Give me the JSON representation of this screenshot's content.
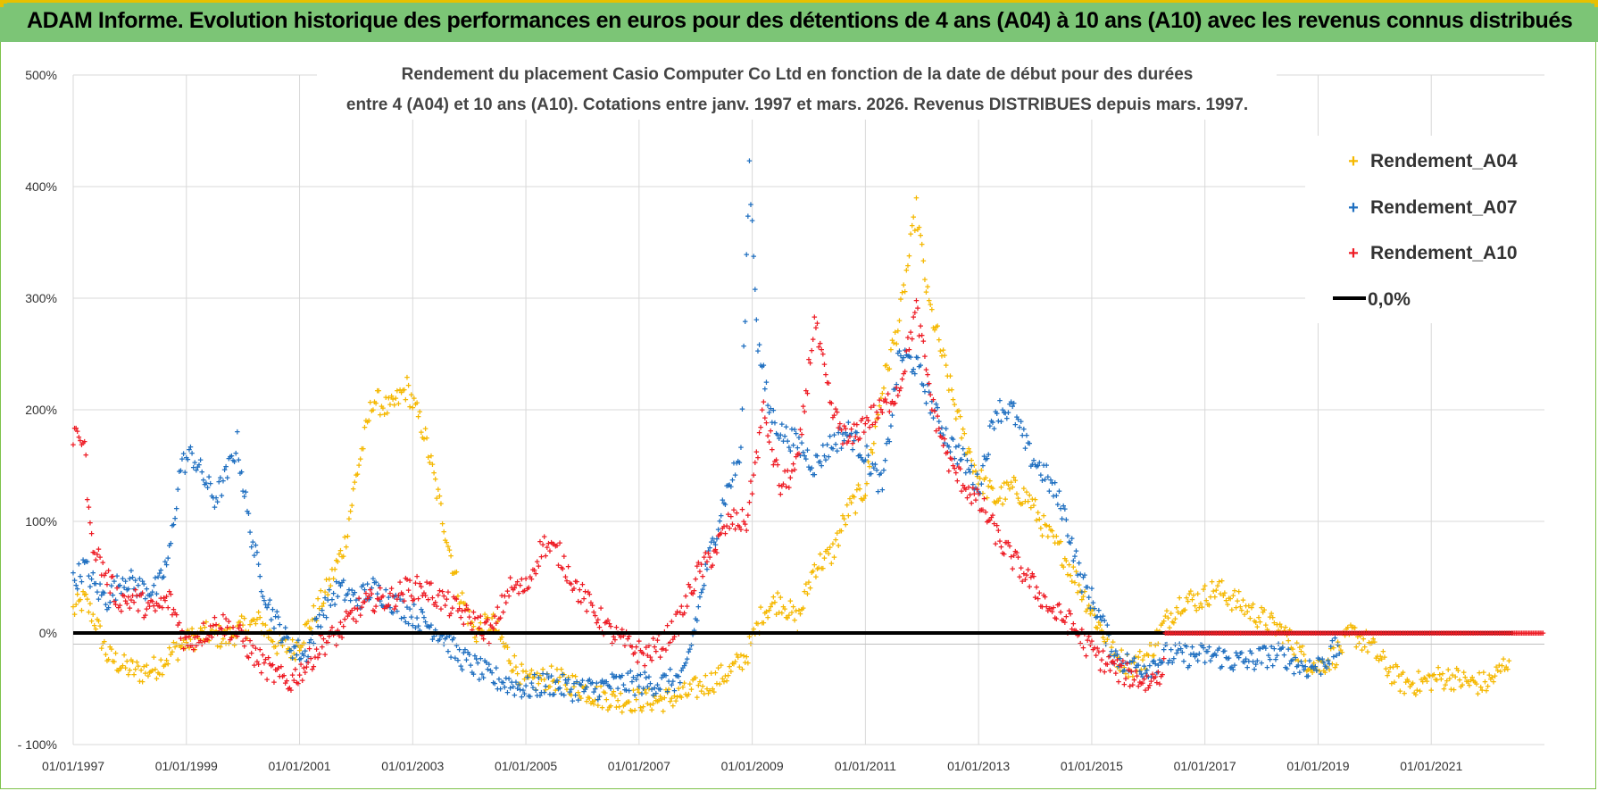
{
  "header": {
    "title": "ADAM Informe. Evolution historique des performances en euros pour des détentions de 4 ans (A04) à 10 ans (A10) avec les revenus connus distribués"
  },
  "colors": {
    "banner": "#7cc576",
    "A04": "#f5b800",
    "A07": "#1f6fc0",
    "A10": "#ee1c25",
    "zero": "#000000"
  },
  "chart_data": {
    "type": "scatter",
    "title_lines": [
      "Rendement du placement Casio Computer Co Ltd en fonction de la date de début pour des durées",
      "entre 4 (A04) et 10 ans (A10).  Cotations entre janv. 1997 et mars. 2026. Revenus DISTRIBUES depuis mars. 1997."
    ],
    "ylim": [
      -100,
      500
    ],
    "y_ticks": [
      "- 100%",
      "0%",
      "100%",
      "200%",
      "300%",
      "400%",
      "500%"
    ],
    "y_tick_values": [
      -100,
      0,
      100,
      200,
      300,
      400,
      500
    ],
    "x_tick_labels": [
      "01/01/1997",
      "01/01/1999",
      "01/01/2001",
      "01/01/2003",
      "01/01/2005",
      "01/01/2007",
      "01/01/2009",
      "01/01/2011",
      "01/01/2013",
      "01/01/2015",
      "01/01/2017",
      "01/01/2019",
      "01/01/2021"
    ],
    "x_tick_years": [
      1997,
      1999,
      2001,
      2003,
      2005,
      2007,
      2009,
      2011,
      2013,
      2015,
      2017,
      2019,
      2021
    ],
    "xlim": [
      1997.0,
      2023.0
    ],
    "grid": true,
    "legend_position": "top-right",
    "series": [
      {
        "name": "Rendement_A04",
        "x": [
          1997.0,
          1997.2,
          1997.4,
          1997.6,
          1997.9,
          1998.2,
          1998.5,
          1998.8,
          1999.1,
          1999.4,
          1999.7,
          2000.0,
          2000.3,
          2000.6,
          2000.9,
          2001.2,
          2001.5,
          2001.8,
          2002.0,
          2002.3,
          2002.6,
          2002.9,
          2003.2,
          2003.5,
          2003.8,
          2004.1,
          2004.4,
          2004.7,
          2005.0,
          2005.4,
          2005.8,
          2006.2,
          2006.6,
          2007.0,
          2007.4,
          2007.8,
          2008.2,
          2008.6,
          2008.9,
          2009.2,
          2009.5,
          2009.8,
          2010.1,
          2010.4,
          2010.7,
          2011.0,
          2011.3,
          2011.6,
          2011.9,
          2012.1,
          2012.4,
          2012.7,
          2013.0,
          2013.3,
          2013.6,
          2013.9,
          2014.2,
          2014.5,
          2014.8,
          2015.1,
          2015.4,
          2015.7,
          2016.0,
          2016.3,
          2016.6,
          2016.9,
          2017.2,
          2017.5,
          2017.8,
          2018.1,
          2018.4,
          2018.7,
          2019.0,
          2019.3,
          2019.6,
          2019.9,
          2020.2,
          2020.5,
          2020.8,
          2021.1,
          2021.4,
          2021.7,
          2022.0,
          2022.2,
          2022.4
        ],
        "y": [
          20,
          30,
          10,
          -20,
          -30,
          -35,
          -30,
          -15,
          -5,
          0,
          -5,
          5,
          10,
          -10,
          -15,
          10,
          40,
          80,
          140,
          210,
          200,
          220,
          180,
          110,
          40,
          0,
          10,
          -20,
          -45,
          -40,
          -45,
          -55,
          -60,
          -60,
          -60,
          -55,
          -45,
          -35,
          -20,
          20,
          30,
          10,
          60,
          70,
          110,
          130,
          220,
          280,
          380,
          300,
          240,
          180,
          140,
          120,
          130,
          120,
          90,
          70,
          40,
          10,
          -20,
          -30,
          -20,
          10,
          30,
          30,
          40,
          30,
          20,
          10,
          0,
          -20,
          -30,
          -20,
          0,
          -10,
          -30,
          -45,
          -45,
          -40,
          -40,
          -45,
          -45,
          -35,
          -20
        ]
      },
      {
        "name": "Rendement_A07",
        "x": [
          1997.0,
          1997.2,
          1997.4,
          1997.6,
          1997.9,
          1998.2,
          1998.5,
          1998.7,
          1998.9,
          1999.1,
          1999.3,
          1999.5,
          1999.7,
          1999.9,
          2000.1,
          2000.3,
          2000.5,
          2000.8,
          2001.1,
          2001.4,
          2001.7,
          2002.0,
          2002.3,
          2002.6,
          2002.9,
          2003.2,
          2003.5,
          2003.8,
          2004.1,
          2004.4,
          2004.7,
          2005.0,
          2005.4,
          2005.8,
          2006.2,
          2006.6,
          2007.0,
          2007.4,
          2007.8,
          2008.2,
          2008.5,
          2008.8,
          2008.95,
          2009.1,
          2009.3,
          2009.5,
          2009.8,
          2010.1,
          2010.4,
          2010.7,
          2011.0,
          2011.3,
          2011.6,
          2011.9,
          2012.2,
          2012.5,
          2012.8,
          2013.0,
          2013.3,
          2013.6,
          2013.9,
          2014.2,
          2014.5,
          2014.8,
          2015.1,
          2015.4,
          2015.7,
          2016.0,
          2016.3,
          2016.6,
          2016.9,
          2017.2,
          2017.5,
          2017.8,
          2018.1,
          2018.4,
          2018.7,
          2019.0,
          2019.2,
          2019.4
        ],
        "y": [
          45,
          60,
          40,
          30,
          50,
          40,
          40,
          70,
          150,
          160,
          140,
          120,
          140,
          170,
          100,
          50,
          20,
          -10,
          -20,
          20,
          40,
          30,
          40,
          30,
          20,
          10,
          0,
          -20,
          -30,
          -40,
          -45,
          -50,
          -45,
          -50,
          -50,
          -45,
          -45,
          -45,
          -40,
          60,
          120,
          160,
          420,
          260,
          200,
          180,
          170,
          150,
          170,
          180,
          160,
          130,
          250,
          240,
          200,
          170,
          150,
          130,
          200,
          200,
          160,
          140,
          110,
          50,
          20,
          -20,
          -30,
          -30,
          -20,
          -20,
          -20,
          -20,
          -25,
          -25,
          -20,
          -20,
          -30,
          -30,
          -20,
          -10
        ]
      },
      {
        "name": "Rendement_A10",
        "x": [
          1997.0,
          1997.1,
          1997.2,
          1997.3,
          1997.5,
          1997.8,
          1998.1,
          1998.4,
          1998.7,
          1999.0,
          1999.3,
          1999.6,
          1999.9,
          2000.2,
          2000.5,
          2000.8,
          2001.1,
          2001.4,
          2001.7,
          2002.0,
          2002.3,
          2002.6,
          2002.9,
          2003.2,
          2003.5,
          2003.8,
          2004.1,
          2004.4,
          2004.7,
          2005.0,
          2005.3,
          2005.6,
          2005.9,
          2006.2,
          2006.5,
          2006.8,
          2007.1,
          2007.4,
          2007.7,
          2008.0,
          2008.3,
          2008.6,
          2008.9,
          2009.2,
          2009.5,
          2009.8,
          2010.1,
          2010.4,
          2010.7,
          2011.0,
          2011.3,
          2011.6,
          2011.9,
          2012.2,
          2012.5,
          2012.8,
          2013.1,
          2013.4,
          2013.7,
          2014.0,
          2014.3,
          2014.6,
          2014.9,
          2015.2,
          2015.5,
          2015.8,
          2016.0,
          2016.3
        ],
        "y": [
          170,
          180,
          170,
          90,
          60,
          30,
          30,
          20,
          30,
          -10,
          0,
          10,
          0,
          -20,
          -35,
          -45,
          -30,
          -10,
          0,
          20,
          30,
          30,
          40,
          40,
          30,
          20,
          10,
          0,
          40,
          40,
          80,
          70,
          40,
          20,
          0,
          -10,
          -20,
          -10,
          10,
          50,
          70,
          100,
          100,
          200,
          130,
          150,
          280,
          200,
          170,
          190,
          200,
          220,
          290,
          200,
          150,
          130,
          110,
          80,
          60,
          40,
          20,
          10,
          -10,
          -25,
          -35,
          -40,
          -45,
          -30
        ]
      }
    ],
    "constant_series": {
      "name": "0,0%",
      "value": 0
    },
    "a10_flat_tail": {
      "x_from": 2016.3,
      "x_to": 2023.0,
      "value": 0
    }
  }
}
